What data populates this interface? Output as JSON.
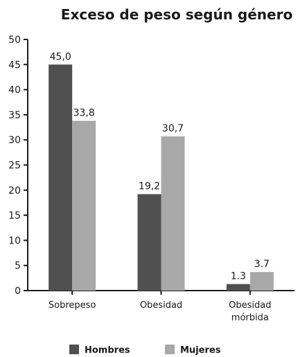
{
  "chart_data": {
    "type": "bar",
    "title": "Exceso de peso según género",
    "xlabel": "",
    "ylabel": "",
    "ylim": [
      0,
      50
    ],
    "yticks": [
      0,
      5,
      10,
      15,
      20,
      25,
      30,
      35,
      40,
      45,
      50
    ],
    "categories": [
      [
        "Sobrepeso"
      ],
      [
        "Obesidad"
      ],
      [
        "Obesidad",
        "mórbida"
      ]
    ],
    "series": [
      {
        "name": "Hombres",
        "color": "#505050",
        "values": [
          45.0,
          19.2,
          1.3
        ],
        "labels": [
          "45,0",
          "19,2",
          "1.3"
        ]
      },
      {
        "name": "Mujeres",
        "color": "#a8a8a8",
        "values": [
          33.8,
          30.7,
          3.7
        ],
        "labels": [
          "33,8",
          "30,7",
          "3.7"
        ]
      }
    ],
    "grid": false,
    "legend": "bottom"
  }
}
